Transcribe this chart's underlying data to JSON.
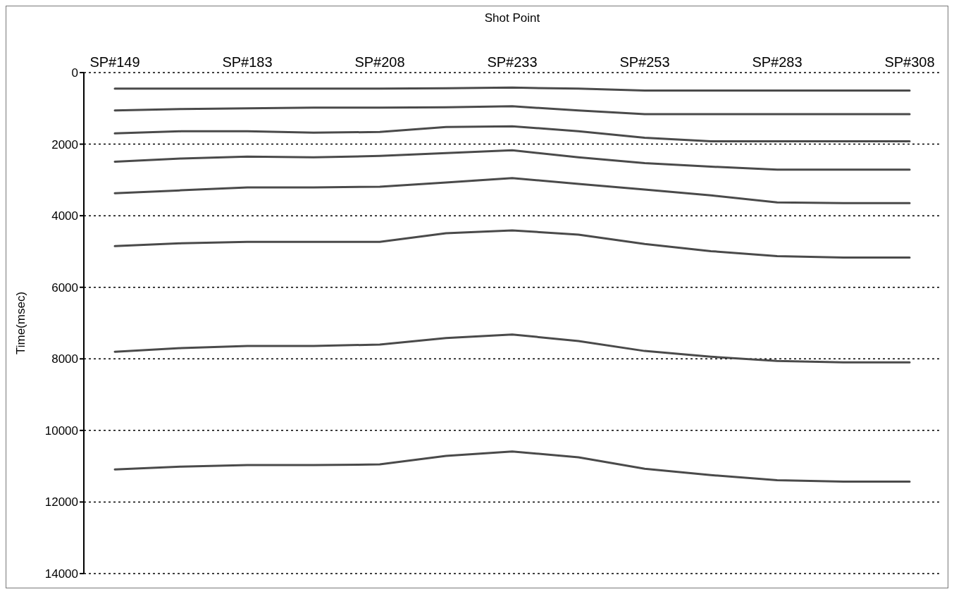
{
  "chart_data": {
    "type": "line",
    "xlabel": "Shot Point",
    "ylabel": "Time(msec)",
    "categories": [
      "SP#149",
      null,
      "SP#183",
      null,
      "SP#208",
      null,
      "SP#233",
      null,
      "SP#253",
      null,
      "SP#283",
      null,
      "SP#308"
    ],
    "ylim": [
      14000,
      0
    ],
    "yticks": [
      0,
      2000,
      4000,
      6000,
      8000,
      10000,
      12000,
      14000
    ],
    "grid": "y",
    "marker": "none",
    "line_style": "solid",
    "series": [
      {
        "color": "#4a4a4a",
        "values": [
          450,
          450,
          450,
          450,
          450,
          440,
          420,
          450,
          500,
          500,
          500,
          500,
          500
        ]
      },
      {
        "color": "#4a4a4a",
        "values": [
          1060,
          1020,
          1000,
          980,
          980,
          970,
          940,
          1060,
          1160,
          1160,
          1160,
          1160,
          1160
        ]
      },
      {
        "color": "#4a4a4a",
        "values": [
          1700,
          1640,
          1640,
          1680,
          1660,
          1520,
          1500,
          1640,
          1820,
          1920,
          1920,
          1920,
          1920
        ]
      },
      {
        "color": "#4a4a4a",
        "values": [
          2490,
          2400,
          2350,
          2370,
          2330,
          2250,
          2170,
          2370,
          2530,
          2630,
          2710,
          2710,
          2710
        ]
      },
      {
        "color": "#4a4a4a",
        "values": [
          3370,
          3290,
          3210,
          3210,
          3190,
          3070,
          2950,
          3110,
          3270,
          3430,
          3630,
          3650,
          3650
        ]
      },
      {
        "color": "#4a4a4a",
        "values": [
          4850,
          4770,
          4730,
          4730,
          4730,
          4490,
          4410,
          4530,
          4790,
          4990,
          5130,
          5170,
          5170
        ]
      },
      {
        "color": "#4a4a4a",
        "values": [
          7800,
          7700,
          7640,
          7640,
          7600,
          7420,
          7320,
          7500,
          7780,
          7940,
          8060,
          8100,
          8100
        ]
      },
      {
        "color": "#4a4a4a",
        "values": [
          11090,
          11010,
          10970,
          10970,
          10950,
          10710,
          10590,
          10750,
          11070,
          11250,
          11390,
          11430,
          11430
        ]
      }
    ]
  }
}
